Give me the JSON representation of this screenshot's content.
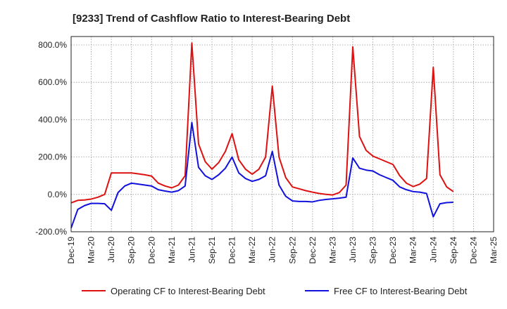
{
  "chart_data": {
    "type": "line",
    "title": "[9233]  Trend of Cashflow Ratio to Interest-Bearing Debt",
    "xlabel": "",
    "ylabel": "",
    "ylim": [
      -200,
      850
    ],
    "y_ticks": [
      {
        "value": 800,
        "label": "800.0%"
      },
      {
        "value": 600,
        "label": "600.0%"
      },
      {
        "value": 400,
        "label": "400.0%"
      },
      {
        "value": 200,
        "label": "200.0%"
      },
      {
        "value": 0,
        "label": "0.0%"
      },
      {
        "value": -200,
        "label": "-200.0%"
      }
    ],
    "x_ticks": [
      "Dec-19",
      "Mar-20",
      "Jun-20",
      "Sep-20",
      "Dec-20",
      "Mar-21",
      "Jun-21",
      "Sep-21",
      "Dec-21",
      "Mar-22",
      "Jun-22",
      "Sep-22",
      "Dec-22",
      "Mar-23",
      "Jun-23",
      "Sep-23",
      "Dec-23",
      "Mar-24",
      "Jun-24",
      "Sep-24",
      "Dec-24",
      "Mar-25"
    ],
    "grid": true,
    "legend": "bottom",
    "series": [
      {
        "name": "Operating CF to Interest-Bearing Debt",
        "color": "#dd1111",
        "values": [
          -45,
          -32,
          -30,
          -25,
          -15,
          0,
          115,
          115,
          115,
          115,
          110,
          105,
          98,
          60,
          45,
          35,
          50,
          100,
          810,
          270,
          175,
          135,
          170,
          230,
          325,
          185,
          135,
          108,
          135,
          200,
          580,
          200,
          90,
          40,
          30,
          20,
          12,
          5,
          0,
          -3,
          10,
          50,
          790,
          310,
          235,
          205,
          190,
          175,
          160,
          100,
          60,
          42,
          55,
          85,
          680,
          105,
          40,
          15
        ]
      },
      {
        "name": "Free CF to Interest-Bearing Debt",
        "color": "#1111dd",
        "values": [
          -180,
          -80,
          -60,
          -48,
          -48,
          -50,
          -85,
          10,
          45,
          60,
          55,
          50,
          45,
          25,
          18,
          12,
          20,
          45,
          385,
          145,
          100,
          80,
          105,
          140,
          200,
          115,
          85,
          70,
          80,
          100,
          230,
          50,
          -10,
          -35,
          -38,
          -38,
          -40,
          -32,
          -27,
          -24,
          -20,
          -15,
          195,
          140,
          130,
          125,
          105,
          90,
          75,
          40,
          25,
          15,
          12,
          5,
          -120,
          -50,
          -44,
          -42
        ]
      }
    ]
  }
}
